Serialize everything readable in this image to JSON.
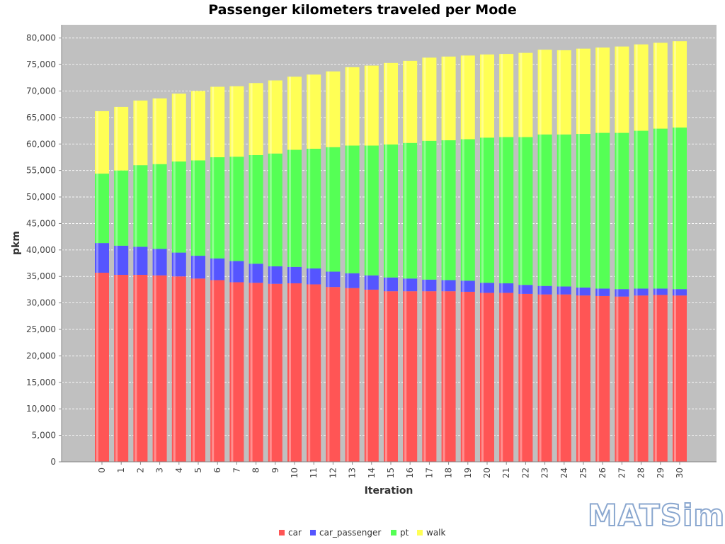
{
  "chart_data": {
    "type": "bar",
    "stacked": true,
    "title": "Passenger kilometers traveled per Mode",
    "xlabel": "Iteration",
    "ylabel": "pkm",
    "ylim": [
      0,
      82500
    ],
    "yticks": [
      0,
      5000,
      10000,
      15000,
      20000,
      25000,
      30000,
      35000,
      40000,
      45000,
      50000,
      55000,
      60000,
      65000,
      70000,
      75000,
      80000
    ],
    "ytick_labels": [
      "0",
      "5,000",
      "10,000",
      "15,000",
      "20,000",
      "25,000",
      "30,000",
      "35,000",
      "40,000",
      "45,000",
      "50,000",
      "55,000",
      "60,000",
      "65,000",
      "70,000",
      "75,000",
      "80,000"
    ],
    "categories": [
      "0",
      "1",
      "2",
      "3",
      "4",
      "5",
      "6",
      "7",
      "8",
      "9",
      "10",
      "11",
      "12",
      "13",
      "14",
      "15",
      "16",
      "17",
      "18",
      "19",
      "20",
      "21",
      "22",
      "23",
      "24",
      "25",
      "26",
      "27",
      "28",
      "29",
      "30"
    ],
    "grid": true,
    "legend_position": "bottom",
    "series": [
      {
        "name": "car",
        "color": "#ff5555",
        "values": [
          35700,
          35300,
          35300,
          35200,
          35000,
          34600,
          34300,
          33900,
          33800,
          33600,
          33700,
          33500,
          33000,
          32800,
          32500,
          32200,
          32200,
          32200,
          32200,
          32100,
          31900,
          31900,
          31700,
          31600,
          31600,
          31400,
          31300,
          31200,
          31400,
          31500,
          31400
        ]
      },
      {
        "name": "car_passenger",
        "color": "#5555ff",
        "values": [
          5600,
          5500,
          5300,
          5000,
          4500,
          4300,
          4100,
          4000,
          3600,
          3300,
          3100,
          3000,
          2900,
          2800,
          2700,
          2600,
          2400,
          2200,
          2100,
          2100,
          1900,
          1800,
          1700,
          1600,
          1500,
          1500,
          1400,
          1400,
          1300,
          1200,
          1200
        ]
      },
      {
        "name": "pt",
        "color": "#55ff55",
        "values": [
          13100,
          14200,
          15400,
          16000,
          17200,
          18000,
          19100,
          19700,
          20500,
          21300,
          22100,
          22600,
          23500,
          24100,
          24500,
          25100,
          25600,
          26200,
          26400,
          26700,
          27400,
          27600,
          27900,
          28600,
          28700,
          29000,
          29400,
          29500,
          29800,
          30200,
          30500
        ]
      },
      {
        "name": "walk",
        "color": "#ffff55",
        "values": [
          11800,
          12000,
          12200,
          12400,
          12800,
          13100,
          13300,
          13300,
          13600,
          13800,
          13800,
          14000,
          14300,
          14800,
          15100,
          15400,
          15500,
          15700,
          15800,
          15800,
          15700,
          15700,
          15900,
          16000,
          15900,
          16100,
          16100,
          16300,
          16300,
          16200,
          16300
        ]
      }
    ]
  },
  "logo": {
    "text": "MATSim",
    "icon": "matsim-logo"
  },
  "colors": {
    "plot_background": "#c0c0c0",
    "grid": "#ffffff"
  }
}
